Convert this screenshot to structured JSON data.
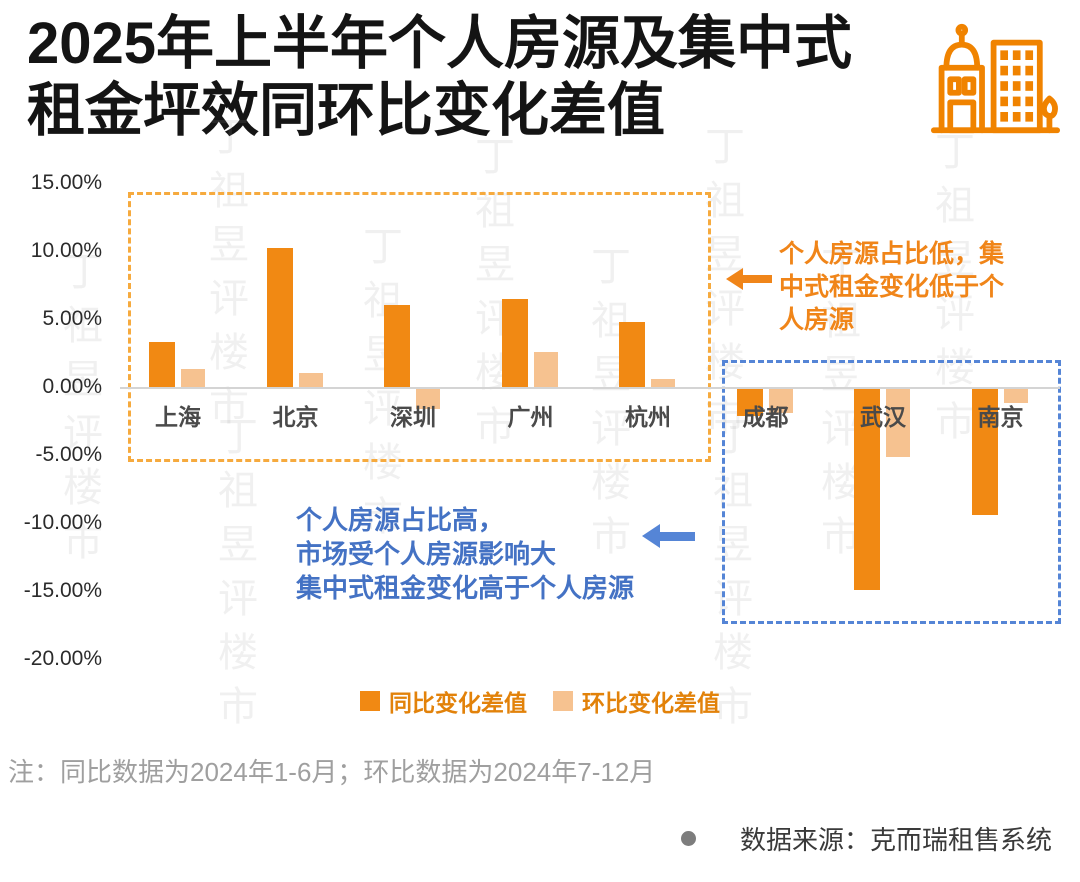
{
  "header": {
    "title_line1": "2025年上半年个人房源及集中式",
    "title_line2": "租金坪效同环比变化差值",
    "logo_icon": "buildings-icon",
    "logo_color": "#F08300"
  },
  "chart_data": {
    "type": "bar",
    "categories": [
      "上海",
      "北京",
      "深圳",
      "广州",
      "杭州",
      "成都",
      "武汉",
      "南京"
    ],
    "series": [
      {
        "name": "同比变化差值",
        "color": "#F18913",
        "values": [
          3.3,
          10.2,
          6.0,
          6.5,
          4.8,
          -2.0,
          -14.8,
          -9.3
        ]
      },
      {
        "name": "环比变化差值",
        "color": "#F6C290",
        "values": [
          1.3,
          1.0,
          -1.5,
          2.6,
          0.6,
          -1.8,
          -5.0,
          -1.0
        ]
      }
    ],
    "ylim": [
      -20,
      15
    ],
    "ytick_step": 5,
    "ytick_labels": [
      "15.00%",
      "10.00%",
      "5.00%",
      "0.00%",
      "-5.00%",
      "-10.00%",
      "-15.00%",
      "-20.00%"
    ],
    "grid": false,
    "legend_position": "bottom",
    "groups": [
      {
        "name": "orange-box",
        "cities": [
          "上海",
          "北京",
          "深圳",
          "广州",
          "杭州"
        ],
        "color": "#F6AA3E"
      },
      {
        "name": "blue-box",
        "cities": [
          "成都",
          "武汉",
          "南京"
        ],
        "color": "#5585D6"
      }
    ]
  },
  "annotations": {
    "orange": {
      "text": "个人房源占比低，集中式租金变化低于个人房源",
      "color": "#F08519"
    },
    "blue": {
      "line1": "个人房源占比高，",
      "line2": "市场受个人房源影响大",
      "line3": "集中式租金变化高于个人房源",
      "color": "#4472C4"
    }
  },
  "legend": {
    "items": [
      {
        "label": "同比变化差值",
        "color": "#F18913"
      },
      {
        "label": "环比变化差值",
        "color": "#F6C290"
      }
    ]
  },
  "footer": {
    "note": "注：同比数据为2024年1-6月；环比数据为2024年7-12月",
    "source_bullet": "●",
    "source": "数据来源：克而瑞租售系统"
  },
  "watermark": {
    "text": "丁祖昱评楼市"
  }
}
